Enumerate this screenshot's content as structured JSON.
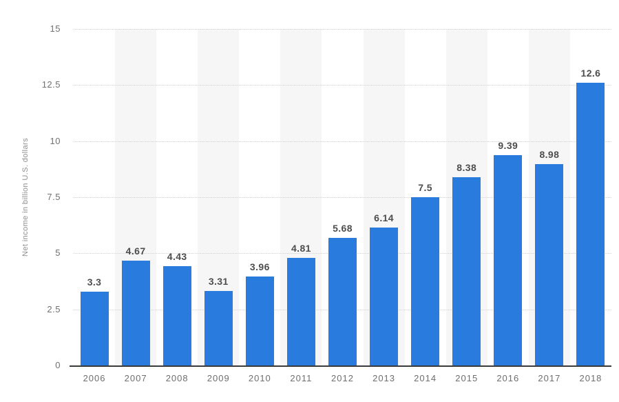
{
  "chart": {
    "y_tick_labels": [
      "15",
      "12.5",
      "10",
      "7.5",
      "5",
      "2.5",
      "0"
    ]
  },
  "chart_data": {
    "type": "bar",
    "categories": [
      "2006",
      "2007",
      "2008",
      "2009",
      "2010",
      "2011",
      "2012",
      "2013",
      "2014",
      "2015",
      "2016",
      "2017",
      "2018"
    ],
    "values": [
      3.3,
      4.67,
      4.43,
      3.31,
      3.96,
      4.81,
      5.68,
      6.14,
      7.5,
      8.38,
      9.39,
      8.98,
      12.6
    ],
    "value_labels": [
      "3.3",
      "4.67",
      "4.43",
      "3.31",
      "3.96",
      "4.81",
      "5.68",
      "6.14",
      "7.5",
      "8.38",
      "9.39",
      "8.98",
      "12.6"
    ],
    "title": "",
    "xlabel": "",
    "ylabel": "Net income in billion U.S. dollars",
    "ylim": [
      0,
      15
    ],
    "yticks": [
      0,
      2.5,
      5,
      7.5,
      10,
      12.5,
      15
    ],
    "grid": "horizontal-dotted",
    "legend_position": "none",
    "bar_color": "#2a7bde",
    "stripe_color": "#f6f6f6",
    "striped_category_indices": [
      1,
      3,
      5,
      7,
      9,
      11
    ],
    "value_label_color": "#4d4d4d",
    "axis_line_color": "#3a3a3a",
    "tick_label_color": "#717171"
  }
}
